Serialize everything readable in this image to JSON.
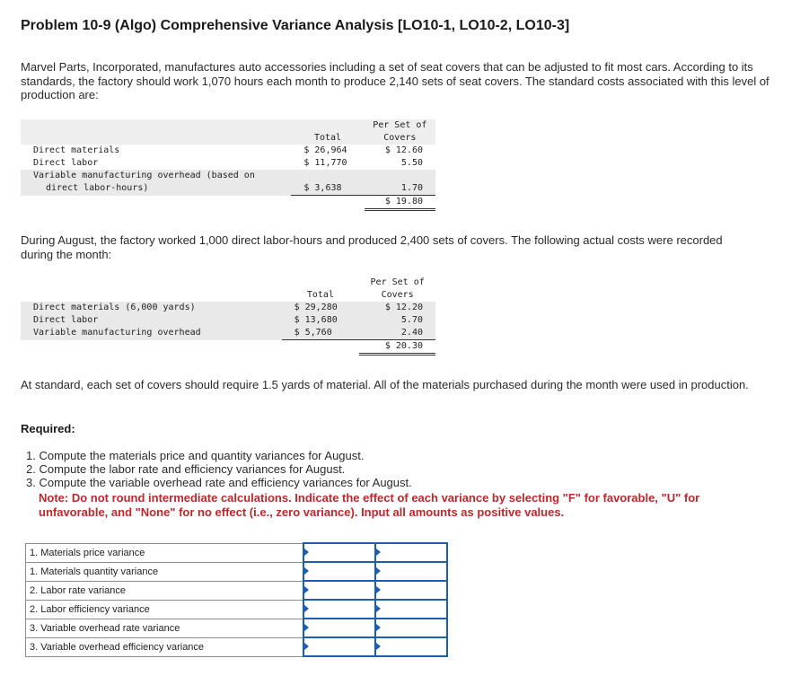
{
  "title": "Problem 10-9 (Algo) Comprehensive Variance Analysis [LO10-1, LO10-2, LO10-3]",
  "intro": "Marvel Parts, Incorporated, manufactures auto accessories including a set of seat covers that can be adjusted to fit most cars. According to its standards, the factory should work 1,070 hours each month to produce 2,140 sets of seat covers. The standard costs associated with this level of production are:",
  "standard_table": {
    "col_total": "Total",
    "col_per_1": "Per Set of",
    "col_per_2": "Covers",
    "rows": [
      {
        "label": "Direct materials",
        "total": "$ 26,964",
        "per": "$ 12.60"
      },
      {
        "label": "Direct labor",
        "total": "$ 11,770",
        "per": "5.50"
      },
      {
        "label": "Variable manufacturing overhead (based on",
        "label2": "direct labor-hours)",
        "total": "$ 3,638",
        "per": "1.70"
      }
    ],
    "per_total": "$ 19.80"
  },
  "august_text": "During August, the factory worked 1,000 direct labor-hours and produced 2,400 sets of covers. The following actual costs were recorded during the month:",
  "actual_table": {
    "col_total": "Total",
    "col_per_1": "Per Set of",
    "col_per_2": "Covers",
    "rows": [
      {
        "label": "Direct materials (6,000 yards)",
        "total": "$ 29,280",
        "per": "$ 12.20"
      },
      {
        "label": "Direct labor",
        "total": "$ 13,680",
        "per": "5.70"
      },
      {
        "label": "Variable manufacturing overhead",
        "total": "$ 5,760",
        "per": "2.40"
      }
    ],
    "per_total": "$ 20.30"
  },
  "standard_text": "At standard, each set of covers should require 1.5 yards of material. All of the materials purchased during the month were used in production.",
  "required_heading": "Required:",
  "requirements": [
    "1. Compute the materials price and quantity variances for August.",
    "2. Compute the labor rate and efficiency variances for August.",
    "3. Compute the variable overhead rate and efficiency variances for August."
  ],
  "note": "Note: Do not round intermediate calculations. Indicate the effect of each variance by selecting \"F\" for favorable, \"U\" for unfavorable, and \"None\" for no effect (i.e., zero variance). Input all amounts as positive values.",
  "answer_rows": [
    {
      "label": "1. Materials price variance",
      "amount": "",
      "effect": ""
    },
    {
      "label": "1. Materials quantity variance",
      "amount": "",
      "effect": ""
    },
    {
      "label": "2. Labor rate variance",
      "amount": "",
      "effect": ""
    },
    {
      "label": "2. Labor efficiency variance",
      "amount": "",
      "effect": ""
    },
    {
      "label": "3. Variable overhead rate variance",
      "amount": "",
      "effect": ""
    },
    {
      "label": "3. Variable overhead efficiency variance",
      "amount": "",
      "effect": ""
    }
  ],
  "colors": {
    "note": "#c0272d",
    "input_border": "#1c5fb0"
  }
}
